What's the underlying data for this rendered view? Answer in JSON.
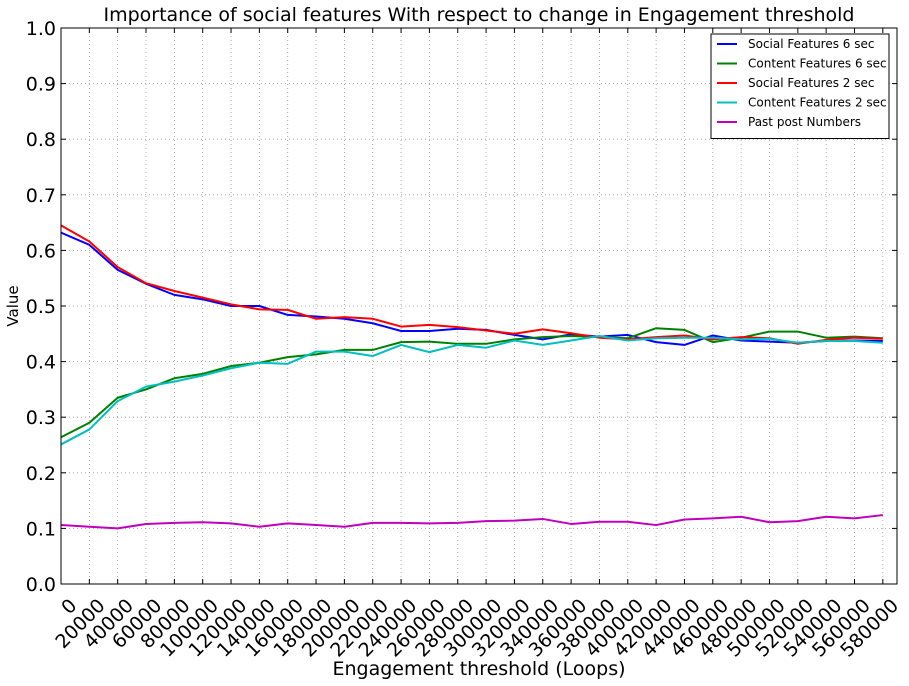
{
  "chart_data": {
    "type": "line",
    "title": "Importance of social features With respect to change in Engagement threshold",
    "xlabel": "Engagement threshold (Loops)",
    "ylabel": "Value",
    "xlim": [
      0,
      590000
    ],
    "ylim": [
      0.0,
      1.0
    ],
    "grid": true,
    "legend_position": "top-right",
    "x_ticks": [
      0,
      20000,
      40000,
      60000,
      80000,
      100000,
      120000,
      140000,
      160000,
      180000,
      200000,
      220000,
      240000,
      260000,
      280000,
      300000,
      320000,
      340000,
      360000,
      380000,
      400000,
      420000,
      440000,
      460000,
      480000,
      500000,
      520000,
      540000,
      560000,
      580000
    ],
    "y_ticks": [
      "0.0",
      "0.1",
      "0.2",
      "0.3",
      "0.4",
      "0.5",
      "0.6",
      "0.7",
      "0.8",
      "0.9",
      "1.0"
    ],
    "x": [
      0,
      20000,
      40000,
      60000,
      80000,
      100000,
      120000,
      140000,
      160000,
      180000,
      200000,
      220000,
      240000,
      260000,
      280000,
      300000,
      320000,
      340000,
      360000,
      380000,
      400000,
      420000,
      440000,
      460000,
      480000,
      500000,
      520000,
      540000,
      560000,
      580000
    ],
    "series": [
      {
        "name": "Social Features 6 sec",
        "color": "#0000ff",
        "values": [
          0.632,
          0.61,
          0.565,
          0.54,
          0.52,
          0.512,
          0.5,
          0.5,
          0.484,
          0.481,
          0.477,
          0.469,
          0.455,
          0.455,
          0.459,
          0.457,
          0.448,
          0.44,
          0.449,
          0.445,
          0.448,
          0.435,
          0.43,
          0.447,
          0.438,
          0.436,
          0.434,
          0.437,
          0.438,
          0.437
        ]
      },
      {
        "name": "Content Features 6 sec",
        "color": "#008000",
        "values": [
          0.264,
          0.29,
          0.335,
          0.35,
          0.37,
          0.378,
          0.392,
          0.398,
          0.408,
          0.413,
          0.421,
          0.421,
          0.435,
          0.436,
          0.432,
          0.432,
          0.44,
          0.444,
          0.446,
          0.444,
          0.442,
          0.46,
          0.457,
          0.435,
          0.443,
          0.454,
          0.454,
          0.443,
          0.445,
          0.442
        ]
      },
      {
        "name": "Social Features 2 sec",
        "color": "#ff0000",
        "values": [
          0.645,
          0.616,
          0.57,
          0.541,
          0.527,
          0.515,
          0.503,
          0.494,
          0.493,
          0.477,
          0.48,
          0.477,
          0.463,
          0.466,
          0.462,
          0.456,
          0.45,
          0.458,
          0.451,
          0.443,
          0.44,
          0.444,
          0.447,
          0.44,
          0.444,
          0.442,
          0.432,
          0.439,
          0.443,
          0.441
        ]
      },
      {
        "name": "Content Features 2 sec",
        "color": "#00bfbf",
        "values": [
          0.251,
          0.278,
          0.329,
          0.355,
          0.364,
          0.375,
          0.388,
          0.398,
          0.396,
          0.418,
          0.418,
          0.41,
          0.43,
          0.417,
          0.43,
          0.425,
          0.438,
          0.43,
          0.438,
          0.446,
          0.438,
          0.442,
          0.443,
          0.443,
          0.44,
          0.441,
          0.434,
          0.437,
          0.437,
          0.434
        ]
      },
      {
        "name": "Past post Numbers",
        "color": "#bf00bf",
        "values": [
          0.106,
          0.103,
          0.1,
          0.108,
          0.11,
          0.111,
          0.109,
          0.103,
          0.109,
          0.106,
          0.103,
          0.11,
          0.11,
          0.109,
          0.11,
          0.113,
          0.114,
          0.117,
          0.108,
          0.112,
          0.112,
          0.106,
          0.116,
          0.118,
          0.121,
          0.111,
          0.113,
          0.121,
          0.118,
          0.124
        ]
      }
    ]
  }
}
